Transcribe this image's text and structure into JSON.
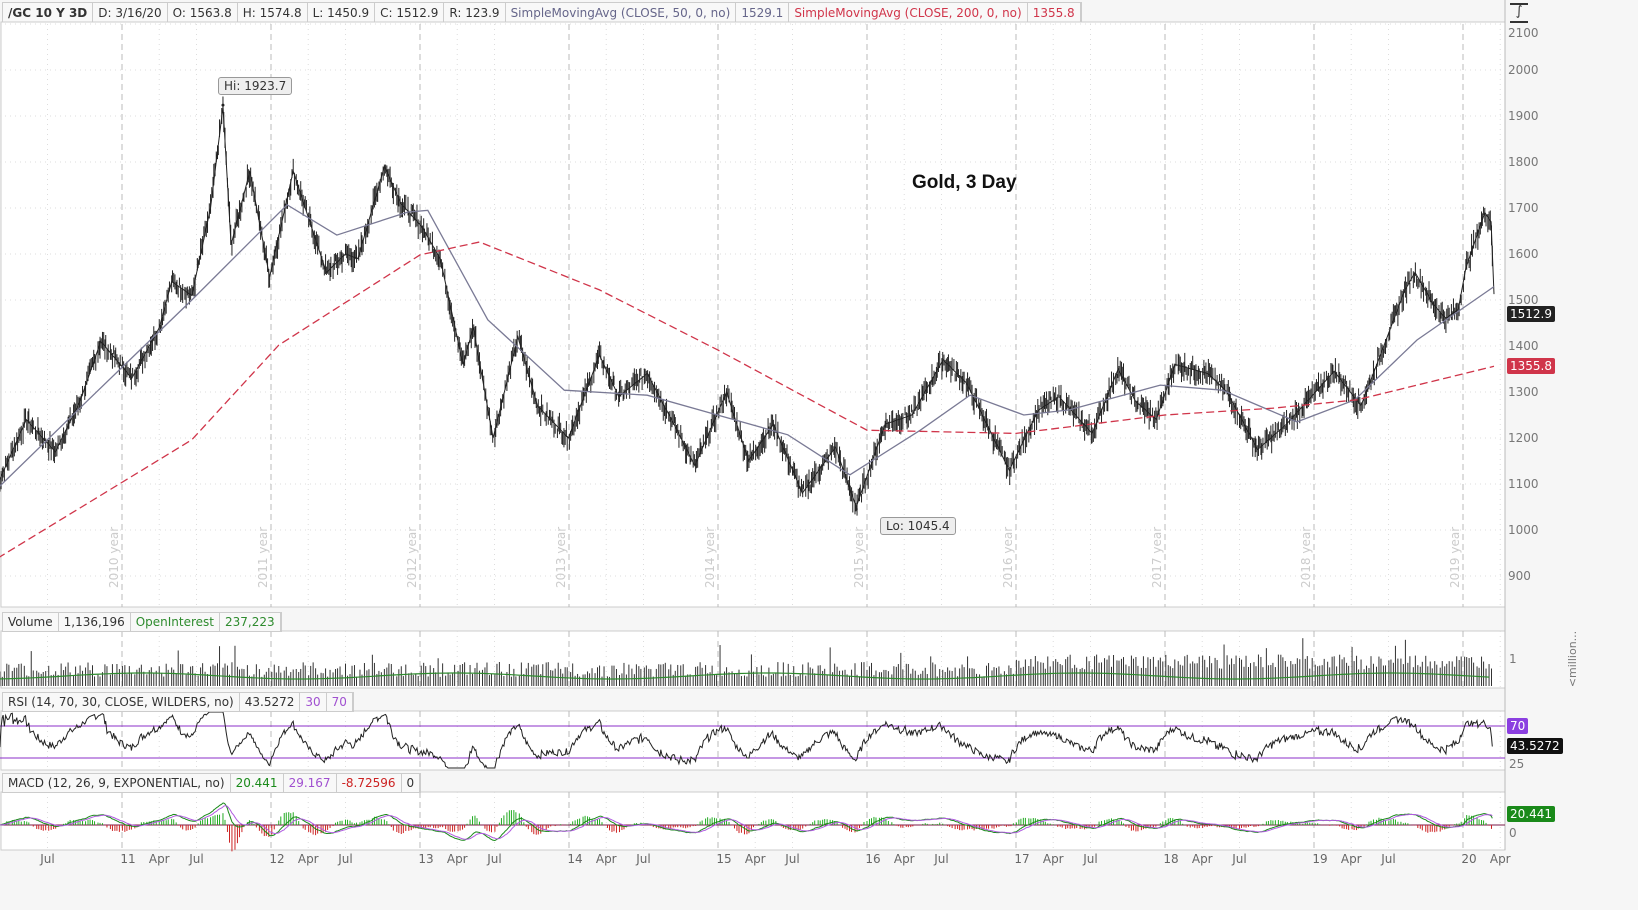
{
  "header": {
    "symbol": "/GC 10 Y 3D",
    "date": "D: 3/16/20",
    "open": "O: 1563.8",
    "high": "H: 1574.8",
    "low": "L: 1450.9",
    "close": "C: 1512.9",
    "range": "R: 123.9",
    "sma50_label": "SimpleMovingAvg (CLOSE, 50, 0, no)",
    "sma50_value": "1529.1",
    "sma200_label": "SimpleMovingAvg (CLOSE, 200, 0, no)",
    "sma200_value": "1355.8"
  },
  "colors": {
    "price": "#222222",
    "sma50": "#7a7a95",
    "sma200": "#d0354a",
    "volume_oi": "#2e8b2e",
    "rsi_bands": "#8b2fc9",
    "macd_value": "#1a8a1a",
    "macd_avg": "#b05ce0",
    "hist_pos": "#22aa22",
    "hist_neg": "#cc2222"
  },
  "icons": {
    "alert": "exclamation-circle-icon",
    "style": "drawing-style-icon"
  },
  "chart_data": {
    "type": "line",
    "title": "Gold, 3 Day",
    "price_axis": {
      "ylim": [
        850,
        2100
      ],
      "ticks": [
        "2100",
        "2000",
        "1900",
        "1800",
        "1700",
        "1600",
        "1500",
        "1400",
        "1300",
        "1200",
        "1100",
        "1000",
        "900"
      ]
    },
    "x_ticks": [
      {
        "label": "Jul",
        "date": "2010-07-01"
      },
      {
        "label": "11",
        "date": "2011-01-01"
      },
      {
        "label": "Apr",
        "date": "2011-04-01"
      },
      {
        "label": "Jul",
        "date": "2011-07-01"
      },
      {
        "label": "12",
        "date": "2012-01-01"
      },
      {
        "label": "Apr",
        "date": "2012-04-01"
      },
      {
        "label": "Jul",
        "date": "2012-07-01"
      },
      {
        "label": "13",
        "date": "2013-01-01"
      },
      {
        "label": "Apr",
        "date": "2013-04-01"
      },
      {
        "label": "Jul",
        "date": "2013-07-01"
      },
      {
        "label": "14",
        "date": "2014-01-01"
      },
      {
        "label": "Apr",
        "date": "2014-04-01"
      },
      {
        "label": "Jul",
        "date": "2014-07-01"
      },
      {
        "label": "15",
        "date": "2015-01-01"
      },
      {
        "label": "Apr",
        "date": "2015-04-01"
      },
      {
        "label": "Jul",
        "date": "2015-07-01"
      },
      {
        "label": "16",
        "date": "2016-01-01"
      },
      {
        "label": "Apr",
        "date": "2016-04-01"
      },
      {
        "label": "Jul",
        "date": "2016-07-01"
      },
      {
        "label": "17",
        "date": "2017-01-01"
      },
      {
        "label": "Apr",
        "date": "2017-04-01"
      },
      {
        "label": "Jul",
        "date": "2017-07-01"
      },
      {
        "label": "18",
        "date": "2018-01-01"
      },
      {
        "label": "Apr",
        "date": "2018-04-01"
      },
      {
        "label": "Jul",
        "date": "2018-07-01"
      },
      {
        "label": "19",
        "date": "2019-01-01"
      },
      {
        "label": "Apr",
        "date": "2019-04-01"
      },
      {
        "label": "Jul",
        "date": "2019-07-01"
      },
      {
        "label": "20",
        "date": "2020-01-01"
      },
      {
        "label": "Apr",
        "date": "2020-04-01"
      }
    ],
    "year_labels": [
      {
        "label": "2010 year",
        "date": "2011-01-01"
      },
      {
        "label": "2011 year",
        "date": "2012-01-01"
      },
      {
        "label": "2012 year",
        "date": "2013-01-01"
      },
      {
        "label": "2013 year",
        "date": "2014-01-01"
      },
      {
        "label": "2014 year",
        "date": "2015-01-01"
      },
      {
        "label": "2015 year",
        "date": "2016-01-01"
      },
      {
        "label": "2016 year",
        "date": "2017-01-01"
      },
      {
        "label": "2017 year",
        "date": "2018-01-01"
      },
      {
        "label": "2018 year",
        "date": "2019-01-01"
      },
      {
        "label": "2019 year",
        "date": "2020-01-01"
      }
    ],
    "hi_label": "Hi: 1923.7",
    "hi": {
      "date": "2011-09-05",
      "value": 1923.7
    },
    "lo_label": "Lo: 1045.4",
    "lo": {
      "date": "2015-12-05",
      "value": 1045.4
    },
    "last_price": "1512.9",
    "last_sma200": "1355.8",
    "series": [
      {
        "key": "price",
        "points": [
          [
            "2010-03-01",
            1100
          ],
          [
            "2010-05-10",
            1240
          ],
          [
            "2010-07-20",
            1170
          ],
          [
            "2010-09-20",
            1280
          ],
          [
            "2010-11-10",
            1410
          ],
          [
            "2011-01-25",
            1330
          ],
          [
            "2011-04-01",
            1440
          ],
          [
            "2011-05-01",
            1540
          ],
          [
            "2011-06-20",
            1510
          ],
          [
            "2011-08-05",
            1700
          ],
          [
            "2011-09-05",
            1920
          ],
          [
            "2011-09-25",
            1620
          ],
          [
            "2011-11-10",
            1780
          ],
          [
            "2011-12-28",
            1550
          ],
          [
            "2012-02-25",
            1780
          ],
          [
            "2012-05-15",
            1560
          ],
          [
            "2012-07-01",
            1600
          ],
          [
            "2012-08-01",
            1590
          ],
          [
            "2012-10-05",
            1790
          ],
          [
            "2012-11-15",
            1710
          ],
          [
            "2013-01-05",
            1660
          ],
          [
            "2013-02-20",
            1590
          ],
          [
            "2013-04-15",
            1360
          ],
          [
            "2013-05-10",
            1440
          ],
          [
            "2013-06-28",
            1200
          ],
          [
            "2013-08-28",
            1420
          ],
          [
            "2013-10-15",
            1270
          ],
          [
            "2013-12-30",
            1200
          ],
          [
            "2014-03-15",
            1380
          ],
          [
            "2014-05-01",
            1290
          ],
          [
            "2014-07-10",
            1340
          ],
          [
            "2014-09-15",
            1230
          ],
          [
            "2014-11-05",
            1140
          ],
          [
            "2015-01-22",
            1300
          ],
          [
            "2015-03-15",
            1150
          ],
          [
            "2015-05-15",
            1230
          ],
          [
            "2015-07-25",
            1080
          ],
          [
            "2015-10-15",
            1180
          ],
          [
            "2015-12-05",
            1050
          ],
          [
            "2016-02-15",
            1230
          ],
          [
            "2016-04-20",
            1250
          ],
          [
            "2016-07-05",
            1370
          ],
          [
            "2016-09-01",
            1320
          ],
          [
            "2016-10-10",
            1250
          ],
          [
            "2016-12-15",
            1130
          ],
          [
            "2017-02-25",
            1260
          ],
          [
            "2017-04-15",
            1290
          ],
          [
            "2017-07-05",
            1210
          ],
          [
            "2017-09-08",
            1350
          ],
          [
            "2017-10-20",
            1280
          ],
          [
            "2017-12-10",
            1240
          ],
          [
            "2018-01-25",
            1360
          ],
          [
            "2018-04-15",
            1340
          ],
          [
            "2018-06-01",
            1300
          ],
          [
            "2018-08-15",
            1175
          ],
          [
            "2018-10-25",
            1230
          ],
          [
            "2019-01-25",
            1320
          ],
          [
            "2019-02-20",
            1345
          ],
          [
            "2019-04-25",
            1270
          ],
          [
            "2019-06-20",
            1400
          ],
          [
            "2019-08-10",
            1520
          ],
          [
            "2019-09-05",
            1560
          ],
          [
            "2019-10-20",
            1490
          ],
          [
            "2019-11-20",
            1460
          ],
          [
            "2019-12-20",
            1480
          ],
          [
            "2020-01-08",
            1570
          ],
          [
            "2020-02-24",
            1690
          ],
          [
            "2020-03-09",
            1670
          ],
          [
            "2020-03-16",
            1512.9
          ]
        ]
      },
      {
        "key": "sma50",
        "name": "SimpleMovingAvg (CLOSE, 50, 0, no)",
        "points": [
          [
            "2010-03-01",
            1091
          ],
          [
            "2010-10-10",
            1283
          ],
          [
            "2011-06-20",
            1500
          ],
          [
            "2012-02-10",
            1707
          ],
          [
            "2012-06-10",
            1641
          ],
          [
            "2012-12-01",
            1691
          ],
          [
            "2013-01-20",
            1695
          ],
          [
            "2013-06-15",
            1457
          ],
          [
            "2013-12-20",
            1304
          ],
          [
            "2014-07-10",
            1293
          ],
          [
            "2014-12-30",
            1250
          ],
          [
            "2015-06-20",
            1207
          ],
          [
            "2015-11-20",
            1120
          ],
          [
            "2016-05-10",
            1217
          ],
          [
            "2016-09-10",
            1293
          ],
          [
            "2017-01-20",
            1250
          ],
          [
            "2017-05-10",
            1261
          ],
          [
            "2017-12-20",
            1315
          ],
          [
            "2018-05-20",
            1304
          ],
          [
            "2018-11-20",
            1235
          ],
          [
            "2019-04-10",
            1283
          ],
          [
            "2019-09-10",
            1413
          ],
          [
            "2020-03-16",
            1529.1
          ]
        ]
      },
      {
        "key": "sma200",
        "name": "SimpleMovingAvg (CLOSE, 200, 0, no)",
        "points": [
          [
            "2010-03-01",
            939
          ],
          [
            "2011-06-20",
            1196
          ],
          [
            "2012-01-20",
            1402
          ],
          [
            "2013-01-01",
            1598
          ],
          [
            "2013-05-25",
            1626
          ],
          [
            "2014-03-15",
            1522
          ],
          [
            "2015-01-01",
            1391
          ],
          [
            "2016-01-01",
            1217
          ],
          [
            "2017-01-01",
            1210
          ],
          [
            "2018-01-01",
            1250
          ],
          [
            "2018-09-25",
            1265
          ],
          [
            "2019-04-15",
            1283
          ],
          [
            "2020-03-16",
            1355.8
          ]
        ]
      }
    ]
  },
  "volume_panel": {
    "label": "Volume",
    "value": "1,136,196",
    "oi_label": "OpenInterest",
    "oi_value": "237,223",
    "tick": "1",
    "unit": "<million..."
  },
  "rsi_panel": {
    "label": "RSI (14, 70, 30, CLOSE, WILDERS, no)",
    "value": "43.5272",
    "low": "30",
    "high": "70",
    "tick_low": "25",
    "badge_high": "70",
    "badge_value": "43.5272"
  },
  "macd_panel": {
    "label": "MACD (12, 26, 9, EXPONENTIAL, no)",
    "value": "20.441",
    "avg": "29.167",
    "diff": "-8.72596",
    "zero": "0",
    "tick_zero": "0",
    "badge_value": "20.441"
  }
}
